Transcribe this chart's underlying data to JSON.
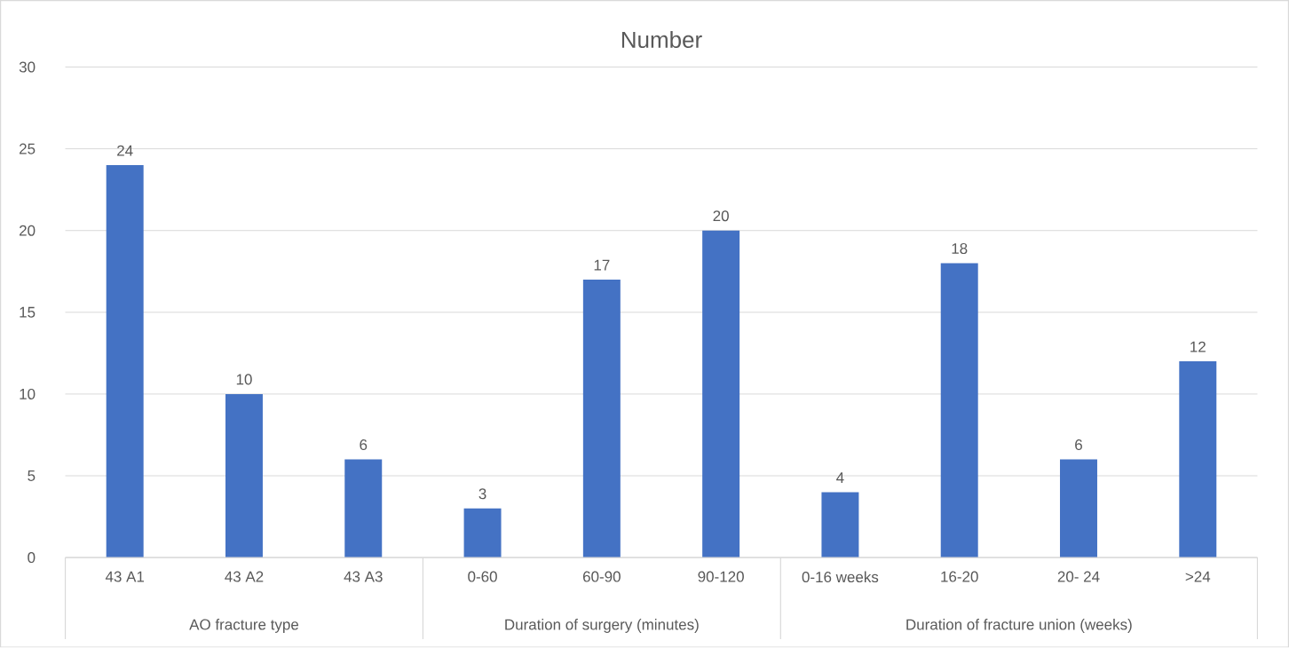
{
  "chart_data": {
    "type": "bar",
    "title": "Number",
    "categories": [
      "43 A1",
      "43 A2",
      "43 A3",
      "0-60",
      "60-90",
      "90-120",
      "0-16 weeks",
      "16-20",
      "20- 24",
      ">24"
    ],
    "values": [
      24,
      10,
      6,
      3,
      17,
      20,
      4,
      18,
      6,
      12
    ],
    "color": "#4472c4",
    "ylim": [
      0,
      30
    ],
    "yticks": [
      0,
      5,
      10,
      15,
      20,
      25,
      30
    ],
    "grid": "y",
    "data_labels": true,
    "annotations": [
      "AO fracture type",
      "Duration of surgery (minutes)",
      "Duration of fracture union (weeks)"
    ]
  }
}
